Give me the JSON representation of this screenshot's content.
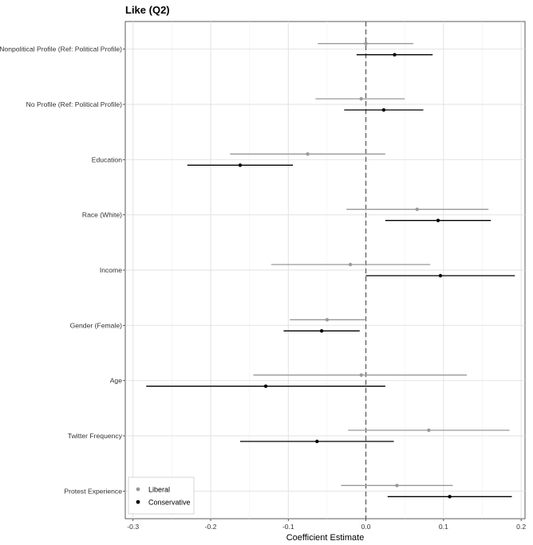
{
  "chart_data": {
    "type": "scatter",
    "title": "Like (Q2)",
    "xlabel": "Coefficient Estimate",
    "ylabel": "",
    "xlim": [
      -0.31,
      0.205
    ],
    "xticks": [
      -0.3,
      -0.2,
      -0.1,
      0.0,
      0.1,
      0.2
    ],
    "xtick_labels": [
      "-0.3",
      "-0.2",
      "-0.1",
      "0.0",
      "0.1",
      "0.2"
    ],
    "reference_line": 0,
    "grid": true,
    "legend_position": "bottom-left",
    "categories": [
      "Nonpolitical Profile (Ref: Political Profile)",
      "No Profile (Ref: Political Profile)",
      "Education",
      "Race (White)",
      "Income",
      "Gender (Female)",
      "Age",
      "Twitter Frequency",
      "Protest Experience"
    ],
    "series": [
      {
        "name": "Liberal",
        "color": "#999999",
        "estimates": [
          0.0,
          -0.006,
          -0.075,
          0.066,
          -0.02,
          -0.05,
          -0.006,
          0.081,
          0.04
        ],
        "ci_low": [
          -0.062,
          -0.065,
          -0.175,
          -0.025,
          -0.122,
          -0.098,
          -0.145,
          -0.023,
          -0.032
        ],
        "ci_high": [
          0.061,
          0.05,
          0.025,
          0.158,
          0.083,
          0.0,
          0.13,
          0.185,
          0.112
        ]
      },
      {
        "name": "Conservative",
        "color": "#000000",
        "estimates": [
          0.037,
          0.023,
          -0.162,
          0.093,
          0.096,
          -0.057,
          -0.129,
          -0.063,
          0.108
        ],
        "ci_low": [
          -0.012,
          -0.028,
          -0.23,
          0.025,
          0.0,
          -0.106,
          -0.283,
          -0.162,
          0.028
        ],
        "ci_high": [
          0.086,
          0.074,
          -0.094,
          0.161,
          0.192,
          -0.008,
          0.025,
          0.036,
          0.188
        ]
      }
    ]
  }
}
